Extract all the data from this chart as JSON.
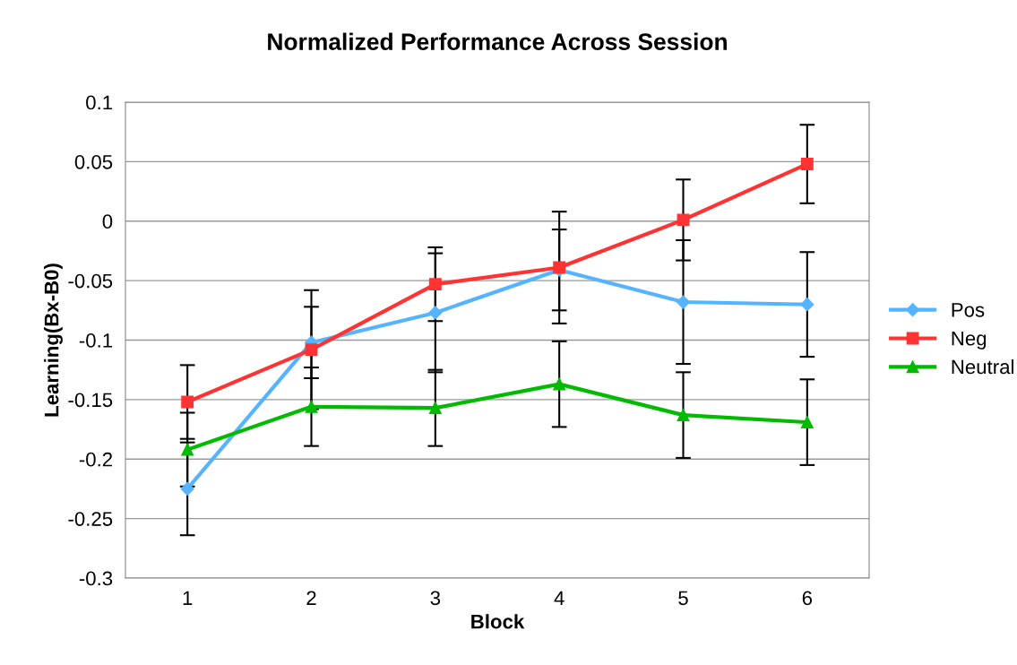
{
  "chart_data": {
    "type": "line",
    "title": "Normalized Performance Across Session",
    "xlabel": "Block",
    "ylabel": "Learning(Bx-B0)",
    "categories": [
      "1",
      "2",
      "3",
      "4",
      "5",
      "6"
    ],
    "series": [
      {
        "name": "Pos",
        "color": "#55b4ff",
        "marker": "diamond",
        "values": [
          -0.225,
          -0.102,
          -0.077,
          -0.041,
          -0.068,
          -0.07
        ],
        "errors": [
          0.039,
          0.03,
          0.05,
          0.034,
          0.052,
          0.044
        ]
      },
      {
        "name": "Neg",
        "color": "#ff3333",
        "marker": "square",
        "values": [
          -0.152,
          -0.108,
          -0.053,
          -0.039,
          0.001,
          0.048
        ],
        "errors": [
          0.031,
          0.05,
          0.031,
          0.047,
          0.034,
          0.033
        ]
      },
      {
        "name": "Neutral",
        "color": "#00bb00",
        "marker": "triangle",
        "values": [
          -0.192,
          -0.156,
          -0.157,
          -0.137,
          -0.163,
          -0.169
        ],
        "errors": [
          0.031,
          0.033,
          0.032,
          0.036,
          0.036,
          0.036
        ]
      }
    ],
    "ylim": [
      -0.3,
      0.1
    ],
    "yticks": [
      -0.3,
      -0.25,
      -0.2,
      -0.15,
      -0.1,
      -0.05,
      0,
      0.05,
      0.1
    ],
    "grid": "y",
    "legend": "right",
    "line_style": "solid"
  }
}
